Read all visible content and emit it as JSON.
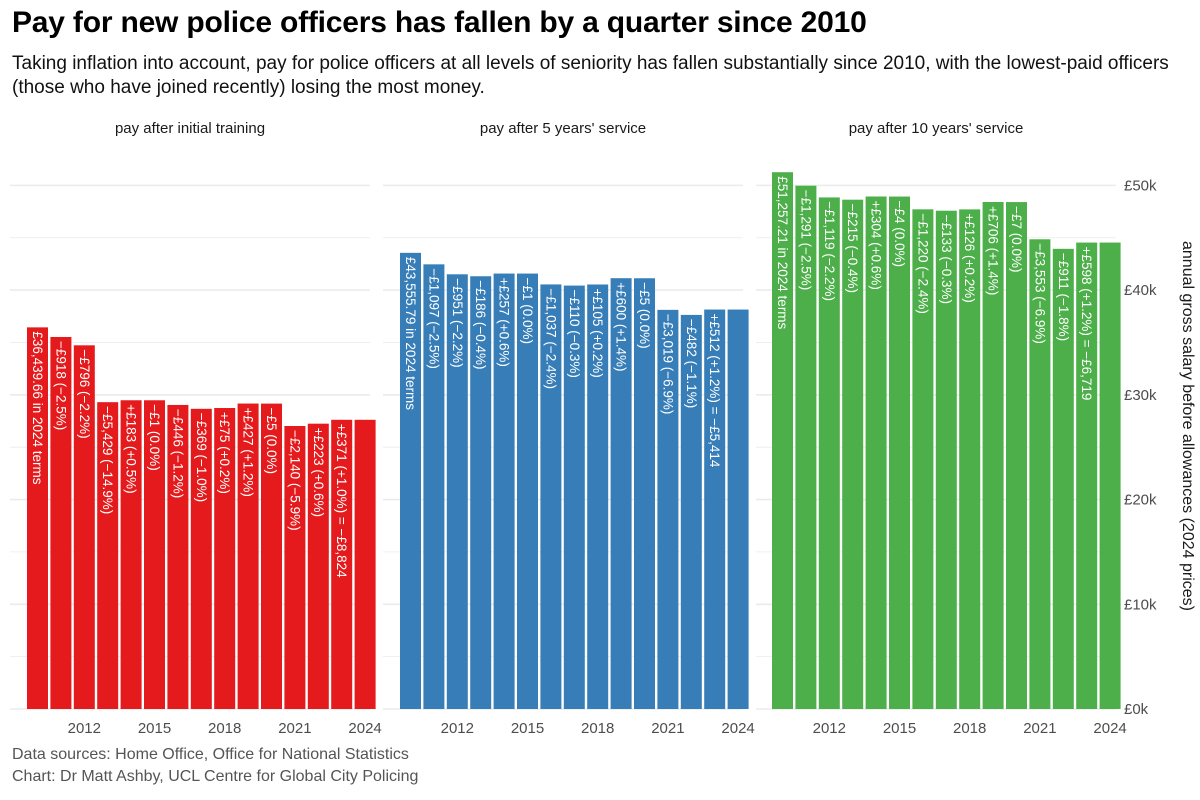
{
  "header": {
    "title": "Pay for new police officers has fallen by a quarter since 2010",
    "subtitle": "Taking inflation into account, pay for police officers at all levels of seniority has fallen substantially since 2010, with the lowest-paid officers (those who have joined recently) losing the most money."
  },
  "caption": {
    "sources": "Data sources: Home Office, Office for National Statistics",
    "credit": "Chart: Dr Matt Ashby, UCL Centre for Global City Policing"
  },
  "colors": {
    "initial": "#e41a1c",
    "five_years": "#377eb8",
    "ten_years": "#4daf4a",
    "gridline": "#ebebeb",
    "axis_text": "#4d4d4d"
  },
  "chart_data": {
    "type": "bar",
    "ylabel": "annual gross salary before allowances (2024 prices)",
    "ylim": [
      0,
      55000
    ],
    "y_ticks": [
      0,
      10000,
      20000,
      30000,
      40000,
      50000
    ],
    "y_tick_labels": [
      "£0k",
      "£10k",
      "£20k",
      "£30k",
      "£40k",
      "£50k"
    ],
    "x": [
      2010,
      2011,
      2012,
      2013,
      2014,
      2015,
      2016,
      2017,
      2018,
      2019,
      2020,
      2021,
      2022,
      2023,
      2024
    ],
    "x_ticks": [
      2012,
      2015,
      2018,
      2021,
      2024
    ],
    "x_tick_labels": [
      "2012",
      "2015",
      "2018",
      "2021",
      "2024"
    ],
    "grid": true,
    "y_axis_position": "right",
    "series": [
      {
        "name": "pay after initial training",
        "color_key": "initial",
        "values": [
          36440,
          35522,
          34726,
          29297,
          29480,
          29479,
          29033,
          28664,
          28739,
          29166,
          29161,
          27021,
          27244,
          27615,
          27615
        ],
        "labels": [
          "£36,439.66 in 2024 terms",
          "−£918 (−2.5%)",
          "−£796 (−2.2%)",
          "−£5,429 (−14.9%)",
          "+£183 (+0.5%)",
          "−£1 (0.0%)",
          "−£446 (−1.2%)",
          "−£369 (−1.0%)",
          "+£75 (+0.2%)",
          "+£427 (+1.2%)",
          "−£5 (0.0%)",
          "−£2,140 (−5.9%)",
          "+£223 (+0.6%)",
          "+£371 (+1.0%) = −£8,824",
          ""
        ]
      },
      {
        "name": "pay after 5 years' service",
        "color_key": "five_years",
        "values": [
          43556,
          42459,
          41508,
          41322,
          41579,
          41578,
          40541,
          40431,
          40536,
          41136,
          41131,
          38112,
          37630,
          38142,
          38142
        ],
        "labels": [
          "£43,555.79 in 2024 terms",
          "−£1,097 (−2.5%)",
          "−£951 (−2.2%)",
          "−£186 (−0.4%)",
          "+£257 (+0.6%)",
          "−£1 (0.0%)",
          "−£1,037 (−2.4%)",
          "−£110 (−0.3%)",
          "+£105 (+0.2%)",
          "+£600 (+1.4%)",
          "−£5 (0.0%)",
          "−£3,019 (−6.9%)",
          "−£482 (−1.1%)",
          "+£512 (+1.2%) = −£5,414",
          ""
        ]
      },
      {
        "name": "pay after 10 years' service",
        "color_key": "ten_years",
        "values": [
          51257,
          49966,
          48847,
          48632,
          48936,
          48932,
          47712,
          47579,
          47705,
          48411,
          48404,
          44851,
          43940,
          44538,
          44538
        ],
        "labels": [
          "£51,257.21 in 2024 terms",
          "−£1,291 (−2.5%)",
          "−£1,119 (−2.2%)",
          "−£215 (−0.4%)",
          "+£304 (+0.6%)",
          "−£4 (0.0%)",
          "−£1,220 (−2.4%)",
          "−£133 (−0.3%)",
          "+£126 (+0.2%)",
          "+£706 (+1.4%)",
          "−£7 (0.0%)",
          "−£3,553 (−6.9%)",
          "−£911 (−1.8%)",
          "+£598 (+1.2%) = −£6,719",
          ""
        ]
      }
    ]
  }
}
